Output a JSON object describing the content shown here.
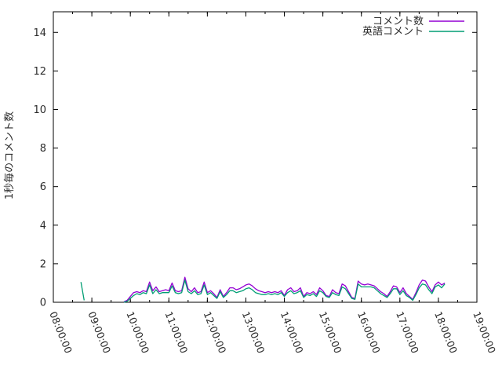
{
  "window": {
    "background": "#ffffff"
  },
  "chart_data": {
    "type": "line",
    "title": "",
    "xlabel": "",
    "ylabel": "1秒毎のコメント数",
    "grid": false,
    "legend": {
      "position": "top-right"
    },
    "x_axis": {
      "start_hour": 8,
      "end_hour": 19,
      "major_tick_labels": [
        "08:00:00",
        "09:00:00",
        "10:00:00",
        "11:00:00",
        "12:00:00",
        "13:00:00",
        "14:00:00",
        "15:00:00",
        "16:00:00",
        "17:00:00",
        "18:00:00",
        "19:00:00"
      ],
      "minor_interval_min": 30,
      "label_rotation_deg": 68
    },
    "y_axis": {
      "min": 0,
      "max": 15.07,
      "tick_values": [
        0,
        2,
        4,
        6,
        8,
        10,
        12,
        14
      ]
    },
    "series": [
      {
        "name": "コメント数",
        "color": "#9400d3",
        "segments": [
          {
            "start": "09:50",
            "interval_min": 5,
            "values": [
              0.02,
              0.1,
              0.3,
              0.5,
              0.55,
              0.5,
              0.6,
              0.55,
              1.05,
              0.6,
              0.8,
              0.55,
              0.6,
              0.65,
              0.6,
              1.0,
              0.6,
              0.55,
              0.6,
              1.3,
              0.7,
              0.55,
              0.75,
              0.5,
              0.55,
              1.05,
              0.5,
              0.6,
              0.45,
              0.25,
              0.65,
              0.3,
              0.5,
              0.75,
              0.75,
              0.65,
              0.7,
              0.8,
              0.9,
              0.95,
              0.85,
              0.7,
              0.6,
              0.55,
              0.5,
              0.55,
              0.5,
              0.55,
              0.5,
              0.6,
              0.35,
              0.65,
              0.75,
              0.55,
              0.6,
              0.75,
              0.3,
              0.5,
              0.45,
              0.55,
              0.4,
              0.75,
              0.6,
              0.35,
              0.3,
              0.65,
              0.5,
              0.45,
              0.95,
              0.85,
              0.55,
              0.25,
              0.2,
              1.1,
              0.95,
              0.9,
              0.95,
              0.9,
              0.85,
              0.7,
              0.55,
              0.45,
              0.3,
              0.55,
              0.85,
              0.8,
              0.5,
              0.75,
              0.45,
              0.3,
              0.15,
              0.5,
              0.9,
              1.15,
              1.1,
              0.8,
              0.55,
              0.9,
              1.05,
              0.9,
              1.0
            ]
          }
        ]
      },
      {
        "name": "英語コメント",
        "color": "#009e73",
        "segments": [
          {
            "start": "08:43",
            "interval_min": 5,
            "values": [
              1.05,
              0.1
            ]
          },
          {
            "start": "09:50",
            "interval_min": 5,
            "values": [
              0.0,
              0.05,
              0.2,
              0.35,
              0.45,
              0.4,
              0.5,
              0.45,
              0.9,
              0.45,
              0.65,
              0.45,
              0.5,
              0.5,
              0.5,
              0.85,
              0.5,
              0.45,
              0.5,
              1.15,
              0.55,
              0.45,
              0.6,
              0.4,
              0.45,
              0.9,
              0.4,
              0.5,
              0.35,
              0.2,
              0.55,
              0.25,
              0.4,
              0.6,
              0.6,
              0.5,
              0.55,
              0.6,
              0.7,
              0.75,
              0.65,
              0.5,
              0.45,
              0.4,
              0.4,
              0.45,
              0.4,
              0.45,
              0.4,
              0.5,
              0.3,
              0.5,
              0.6,
              0.45,
              0.5,
              0.6,
              0.25,
              0.4,
              0.35,
              0.45,
              0.3,
              0.6,
              0.5,
              0.3,
              0.25,
              0.5,
              0.4,
              0.35,
              0.8,
              0.7,
              0.45,
              0.2,
              0.15,
              0.95,
              0.8,
              0.8,
              0.8,
              0.8,
              0.75,
              0.6,
              0.45,
              0.35,
              0.25,
              0.45,
              0.7,
              0.7,
              0.4,
              0.6,
              0.35,
              0.25,
              0.1,
              0.4,
              0.75,
              0.95,
              0.9,
              0.65,
              0.45,
              0.8,
              0.9,
              0.75,
              0.95
            ]
          }
        ]
      }
    ]
  }
}
